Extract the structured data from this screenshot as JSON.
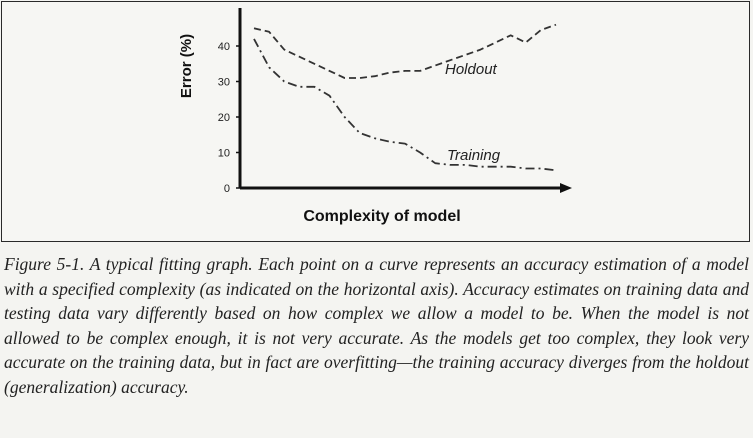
{
  "chart_data": {
    "type": "line",
    "xlabel": "Complexity of model",
    "ylabel": "Error (%)",
    "ylim": [
      0,
      45
    ],
    "yticks": [
      0,
      10,
      20,
      30,
      40
    ],
    "grid": false,
    "series": [
      {
        "name": "Holdout",
        "style": "dashed",
        "x": [
          0,
          1,
          2,
          3,
          4,
          5,
          6,
          7,
          8,
          9,
          10,
          11,
          12,
          13,
          14,
          15,
          16,
          17,
          18,
          19,
          20
        ],
        "values": [
          45,
          44,
          39,
          37,
          35,
          33,
          31,
          31,
          31.5,
          32.5,
          33,
          33,
          34.5,
          36,
          37.5,
          39,
          41,
          43,
          41,
          44.5,
          46
        ]
      },
      {
        "name": "Training",
        "style": "dash-dot",
        "x": [
          0,
          1,
          2,
          3,
          4,
          5,
          6,
          7,
          8,
          9,
          10,
          11,
          12,
          13,
          14,
          15,
          16,
          17,
          18,
          19,
          20
        ],
        "values": [
          42,
          34,
          30,
          28.5,
          28.5,
          26,
          20,
          15.5,
          14,
          13,
          12.5,
          10,
          7,
          6.5,
          6.5,
          6,
          6,
          6,
          5.5,
          5.5,
          5
        ]
      }
    ]
  },
  "caption": {
    "lead": "Figure 5-1. A typical fitting graph.",
    "text": " Each point on a curve represents an accuracy estimation of a model with a specified complexity (as indicated on the horizontal axis). Accuracy estimates on training data and testing data vary differently based on how complex we allow a model to be. When the model is not allowed to be complex enough, it is not very accurate. As the models get too complex, they look very accurate on the training data, but in fact are overfitting—the training accuracy diverges from the holdout (generalization) accuracy."
  }
}
